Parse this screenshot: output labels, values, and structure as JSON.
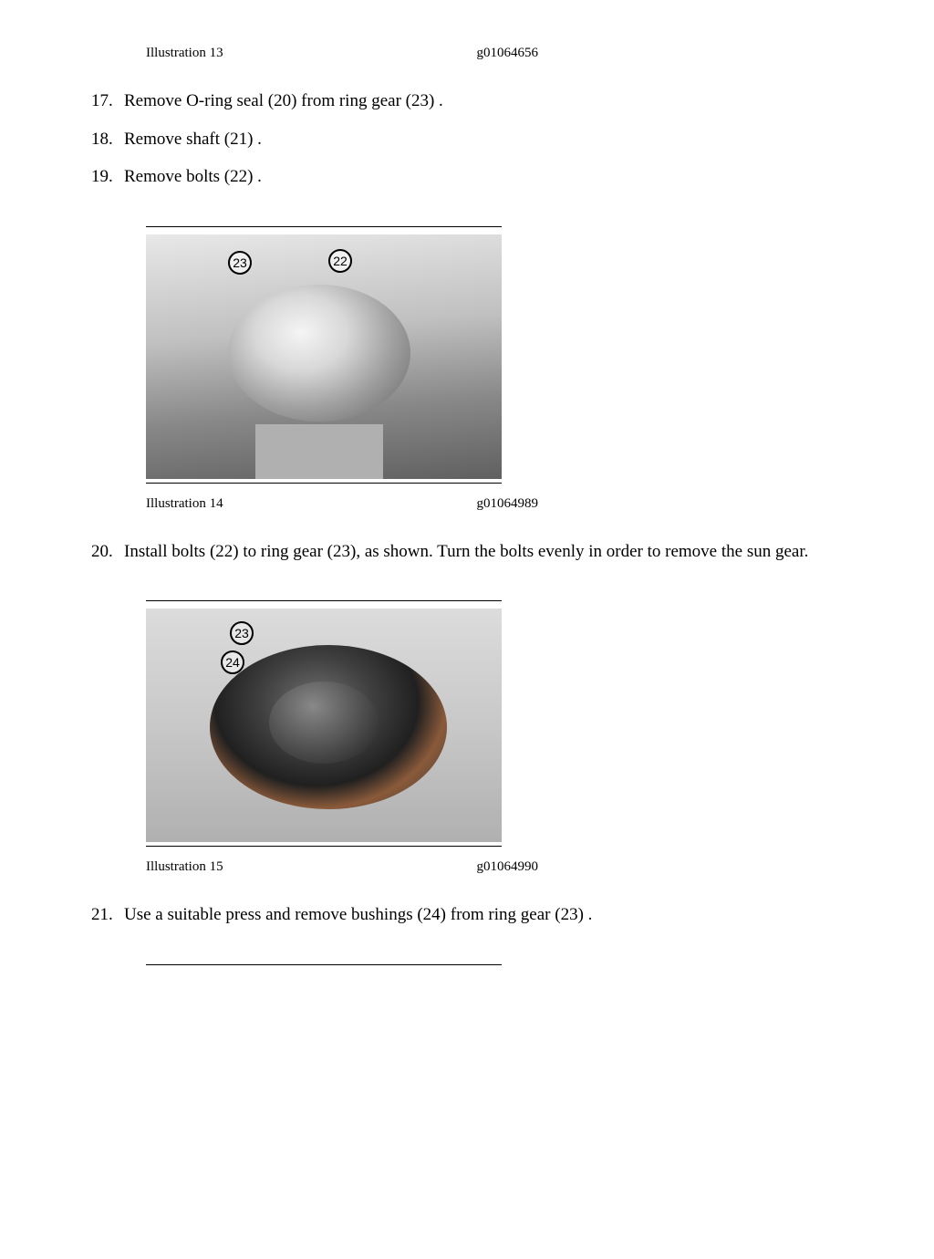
{
  "illustrations": {
    "i13": {
      "label": "Illustration 13",
      "code": "g01064656"
    },
    "i14": {
      "label": "Illustration 14",
      "code": "g01064989"
    },
    "i15": {
      "label": "Illustration 15",
      "code": "g01064990"
    }
  },
  "steps": {
    "s17": {
      "num": "17.",
      "text": "Remove O-ring seal (20) from ring gear (23) ."
    },
    "s18": {
      "num": "18.",
      "text": "Remove shaft (21) ."
    },
    "s19": {
      "num": "19.",
      "text": "Remove bolts (22) ."
    },
    "s20": {
      "num": "20.",
      "text": "Install bolts (22) to ring gear (23), as shown. Turn the bolts evenly in order to remove the sun gear."
    },
    "s21": {
      "num": "21.",
      "text": "Use a suitable press and remove bushings (24) from ring gear (23) ."
    }
  },
  "callouts": {
    "img14": {
      "c22": "22",
      "c23": "23"
    },
    "img15": {
      "c23": "23",
      "c24": "24"
    }
  }
}
